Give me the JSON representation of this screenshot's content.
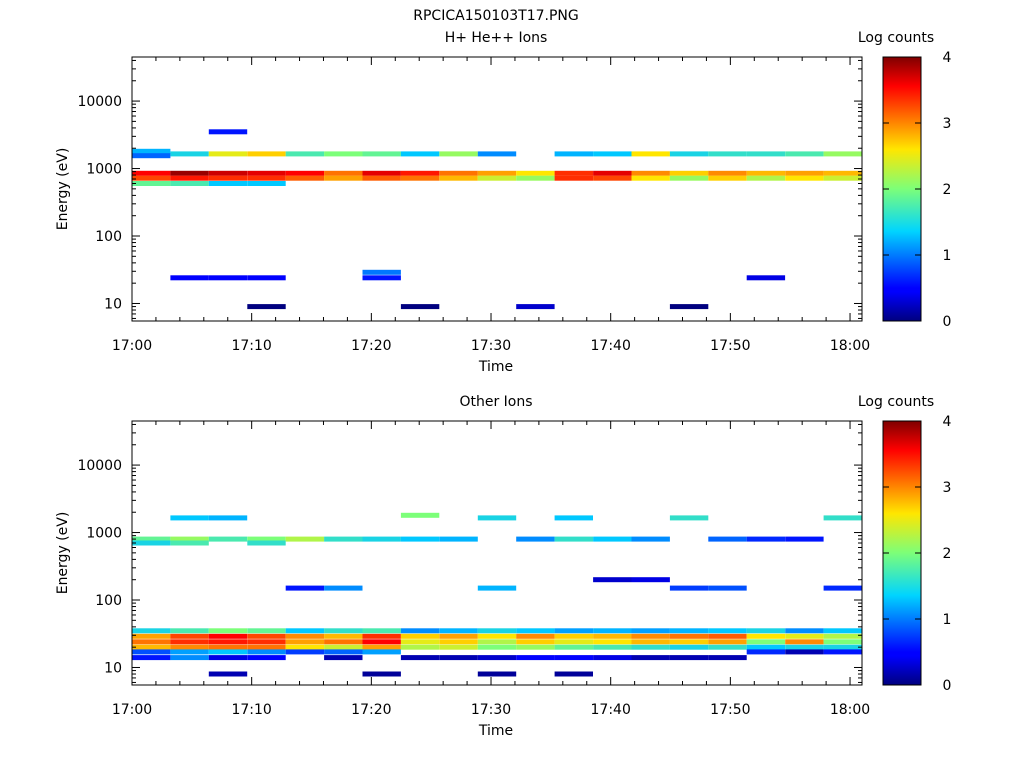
{
  "figure_title": "RPCICA150103T17.PNG",
  "chart_data": [
    {
      "type": "heatmap",
      "title": "H+ He++ Ions",
      "xlabel": "Time",
      "ylabel": "Energy (eV)",
      "x_ticks": [
        "17:00",
        "17:10",
        "17:20",
        "17:30",
        "17:40",
        "17:50",
        "18:00"
      ],
      "x_range": [
        "17:00",
        "18:01"
      ],
      "y_scale": "log",
      "y_ticks": [
        10,
        100,
        1000,
        10000
      ],
      "y_range": [
        5.5,
        45000
      ],
      "colorbar": {
        "label": "Log counts",
        "range": [
          0,
          4
        ],
        "ticks": [
          0,
          1,
          2,
          3,
          4
        ]
      },
      "time_bins": 19,
      "cells": [
        {
          "c": 0,
          "e": 850,
          "v": 3.5
        },
        {
          "c": 0,
          "e": 720,
          "v": 3.2
        },
        {
          "c": 0,
          "e": 600,
          "v": 1.9
        },
        {
          "c": 0,
          "e": 1800,
          "v": 1.4
        },
        {
          "c": 0,
          "e": 1550,
          "v": 1.0
        },
        {
          "c": 1,
          "e": 850,
          "v": 3.9
        },
        {
          "c": 1,
          "e": 720,
          "v": 3.4
        },
        {
          "c": 1,
          "e": 600,
          "v": 1.8
        },
        {
          "c": 1,
          "e": 1650,
          "v": 1.6
        },
        {
          "c": 1,
          "e": 24,
          "v": 0.5
        },
        {
          "c": 2,
          "e": 850,
          "v": 3.7
        },
        {
          "c": 2,
          "e": 720,
          "v": 3.3
        },
        {
          "c": 2,
          "e": 600,
          "v": 1.5
        },
        {
          "c": 2,
          "e": 1650,
          "v": 2.4
        },
        {
          "c": 2,
          "e": 3500,
          "v": 0.6
        },
        {
          "c": 2,
          "e": 24,
          "v": 0.5
        },
        {
          "c": 3,
          "e": 850,
          "v": 3.6
        },
        {
          "c": 3,
          "e": 720,
          "v": 3.3
        },
        {
          "c": 3,
          "e": 600,
          "v": 1.5
        },
        {
          "c": 3,
          "e": 1650,
          "v": 2.6
        },
        {
          "c": 3,
          "e": 9,
          "v": 0.0
        },
        {
          "c": 3,
          "e": 24,
          "v": 0.5
        },
        {
          "c": 4,
          "e": 850,
          "v": 3.5
        },
        {
          "c": 4,
          "e": 720,
          "v": 3.1
        },
        {
          "c": 4,
          "e": 1650,
          "v": 1.8
        },
        {
          "c": 5,
          "e": 850,
          "v": 3.0
        },
        {
          "c": 5,
          "e": 720,
          "v": 2.8
        },
        {
          "c": 5,
          "e": 1650,
          "v": 2.0
        },
        {
          "c": 6,
          "e": 850,
          "v": 3.6
        },
        {
          "c": 6,
          "e": 720,
          "v": 3.1
        },
        {
          "c": 6,
          "e": 1650,
          "v": 1.9
        },
        {
          "c": 6,
          "e": 29,
          "v": 1.1
        },
        {
          "c": 6,
          "e": 24,
          "v": 0.6
        },
        {
          "c": 7,
          "e": 850,
          "v": 3.4
        },
        {
          "c": 7,
          "e": 720,
          "v": 3.0
        },
        {
          "c": 7,
          "e": 1650,
          "v": 1.5
        },
        {
          "c": 7,
          "e": 9,
          "v": 0.0
        },
        {
          "c": 8,
          "e": 850,
          "v": 3.0
        },
        {
          "c": 8,
          "e": 720,
          "v": 2.7
        },
        {
          "c": 8,
          "e": 1650,
          "v": 2.1
        },
        {
          "c": 9,
          "e": 850,
          "v": 2.8
        },
        {
          "c": 9,
          "e": 720,
          "v": 2.3
        },
        {
          "c": 9,
          "e": 1650,
          "v": 1.2
        },
        {
          "c": 10,
          "e": 850,
          "v": 2.5
        },
        {
          "c": 10,
          "e": 720,
          "v": 2.1
        },
        {
          "c": 10,
          "e": 9,
          "v": 0.3
        },
        {
          "c": 11,
          "e": 850,
          "v": 3.3
        },
        {
          "c": 11,
          "e": 720,
          "v": 3.3
        },
        {
          "c": 11,
          "e": 1650,
          "v": 1.4
        },
        {
          "c": 12,
          "e": 850,
          "v": 3.6
        },
        {
          "c": 12,
          "e": 720,
          "v": 3.2
        },
        {
          "c": 12,
          "e": 1650,
          "v": 1.5
        },
        {
          "c": 13,
          "e": 850,
          "v": 2.9
        },
        {
          "c": 13,
          "e": 720,
          "v": 2.5
        },
        {
          "c": 13,
          "e": 1650,
          "v": 2.5
        },
        {
          "c": 14,
          "e": 850,
          "v": 2.6
        },
        {
          "c": 14,
          "e": 720,
          "v": 2.1
        },
        {
          "c": 14,
          "e": 1650,
          "v": 1.6
        },
        {
          "c": 14,
          "e": 9,
          "v": 0.0
        },
        {
          "c": 15,
          "e": 850,
          "v": 2.9
        },
        {
          "c": 15,
          "e": 720,
          "v": 2.6
        },
        {
          "c": 15,
          "e": 1650,
          "v": 1.7
        },
        {
          "c": 16,
          "e": 850,
          "v": 2.7
        },
        {
          "c": 16,
          "e": 720,
          "v": 2.2
        },
        {
          "c": 16,
          "e": 1650,
          "v": 1.7
        },
        {
          "c": 16,
          "e": 24,
          "v": 0.4
        },
        {
          "c": 17,
          "e": 850,
          "v": 2.8
        },
        {
          "c": 17,
          "e": 720,
          "v": 2.5
        },
        {
          "c": 17,
          "e": 1650,
          "v": 1.8
        },
        {
          "c": 18,
          "e": 850,
          "v": 2.7
        },
        {
          "c": 18,
          "e": 720,
          "v": 2.3
        },
        {
          "c": 18,
          "e": 1650,
          "v": 2.1
        }
      ]
    },
    {
      "type": "heatmap",
      "title": "Other Ions",
      "xlabel": "Time",
      "ylabel": "Energy (eV)",
      "x_ticks": [
        "17:00",
        "17:10",
        "17:20",
        "17:30",
        "17:40",
        "17:50",
        "18:00"
      ],
      "x_range": [
        "17:00",
        "18:01"
      ],
      "y_scale": "log",
      "y_ticks": [
        10,
        100,
        1000,
        10000
      ],
      "y_range": [
        5.5,
        45000
      ],
      "colorbar": {
        "label": "Log counts",
        "range": [
          0,
          4
        ],
        "ticks": [
          0,
          1,
          2,
          3,
          4
        ]
      },
      "time_bins": 19,
      "cells": [
        {
          "c": 0,
          "e": 35,
          "v": 1.6
        },
        {
          "c": 0,
          "e": 29,
          "v": 2.8
        },
        {
          "c": 0,
          "e": 24,
          "v": 3.0
        },
        {
          "c": 0,
          "e": 20,
          "v": 2.7
        },
        {
          "c": 0,
          "e": 17,
          "v": 0.9
        },
        {
          "c": 0,
          "e": 14,
          "v": 0.6
        },
        {
          "c": 0,
          "e": 800,
          "v": 1.9
        },
        {
          "c": 0,
          "e": 700,
          "v": 1.6
        },
        {
          "c": 1,
          "e": 35,
          "v": 1.8
        },
        {
          "c": 1,
          "e": 29,
          "v": 3.2
        },
        {
          "c": 1,
          "e": 24,
          "v": 3.3
        },
        {
          "c": 1,
          "e": 20,
          "v": 2.9
        },
        {
          "c": 1,
          "e": 17,
          "v": 1.3
        },
        {
          "c": 1,
          "e": 14,
          "v": 1.2
        },
        {
          "c": 1,
          "e": 800,
          "v": 2.1
        },
        {
          "c": 1,
          "e": 700,
          "v": 1.8
        },
        {
          "c": 1,
          "e": 1650,
          "v": 1.5
        },
        {
          "c": 2,
          "e": 35,
          "v": 2.0
        },
        {
          "c": 2,
          "e": 29,
          "v": 3.5
        },
        {
          "c": 2,
          "e": 24,
          "v": 3.4
        },
        {
          "c": 2,
          "e": 20,
          "v": 3.0
        },
        {
          "c": 2,
          "e": 17,
          "v": 1.5
        },
        {
          "c": 2,
          "e": 14,
          "v": 0.4
        },
        {
          "c": 2,
          "e": 8,
          "v": 0.2
        },
        {
          "c": 2,
          "e": 800,
          "v": 1.8
        },
        {
          "c": 2,
          "e": 1650,
          "v": 1.4
        },
        {
          "c": 3,
          "e": 35,
          "v": 1.9
        },
        {
          "c": 3,
          "e": 29,
          "v": 3.2
        },
        {
          "c": 3,
          "e": 24,
          "v": 3.3
        },
        {
          "c": 3,
          "e": 20,
          "v": 3.0
        },
        {
          "c": 3,
          "e": 17,
          "v": 1.2
        },
        {
          "c": 3,
          "e": 14,
          "v": 0.5
        },
        {
          "c": 3,
          "e": 800,
          "v": 2.0
        },
        {
          "c": 3,
          "e": 700,
          "v": 1.7
        },
        {
          "c": 4,
          "e": 35,
          "v": 1.5
        },
        {
          "c": 4,
          "e": 29,
          "v": 2.9
        },
        {
          "c": 4,
          "e": 24,
          "v": 2.8
        },
        {
          "c": 4,
          "e": 20,
          "v": 2.5
        },
        {
          "c": 4,
          "e": 17,
          "v": 0.8
        },
        {
          "c": 4,
          "e": 800,
          "v": 2.2
        },
        {
          "c": 4,
          "e": 150,
          "v": 0.6
        },
        {
          "c": 5,
          "e": 35,
          "v": 1.7
        },
        {
          "c": 5,
          "e": 29,
          "v": 2.7
        },
        {
          "c": 5,
          "e": 24,
          "v": 3.0
        },
        {
          "c": 5,
          "e": 20,
          "v": 2.3
        },
        {
          "c": 5,
          "e": 17,
          "v": 1.0
        },
        {
          "c": 5,
          "e": 14,
          "v": 0.2
        },
        {
          "c": 5,
          "e": 800,
          "v": 1.7
        },
        {
          "c": 5,
          "e": 150,
          "v": 1.2
        },
        {
          "c": 6,
          "e": 35,
          "v": 1.8
        },
        {
          "c": 6,
          "e": 29,
          "v": 3.3
        },
        {
          "c": 6,
          "e": 24,
          "v": 3.5
        },
        {
          "c": 6,
          "e": 20,
          "v": 2.8
        },
        {
          "c": 6,
          "e": 17,
          "v": 1.3
        },
        {
          "c": 6,
          "e": 8,
          "v": 0.1
        },
        {
          "c": 6,
          "e": 800,
          "v": 1.6
        },
        {
          "c": 7,
          "e": 35,
          "v": 1.2
        },
        {
          "c": 7,
          "e": 29,
          "v": 2.6
        },
        {
          "c": 7,
          "e": 24,
          "v": 2.4
        },
        {
          "c": 7,
          "e": 20,
          "v": 2.2
        },
        {
          "c": 7,
          "e": 14,
          "v": 0.2
        },
        {
          "c": 7,
          "e": 1800,
          "v": 2.0
        },
        {
          "c": 7,
          "e": 800,
          "v": 1.5
        },
        {
          "c": 8,
          "e": 35,
          "v": 1.4
        },
        {
          "c": 8,
          "e": 29,
          "v": 2.8
        },
        {
          "c": 8,
          "e": 24,
          "v": 2.6
        },
        {
          "c": 8,
          "e": 20,
          "v": 2.3
        },
        {
          "c": 8,
          "e": 14,
          "v": 0.2
        },
        {
          "c": 8,
          "e": 800,
          "v": 1.4
        },
        {
          "c": 9,
          "e": 35,
          "v": 1.6
        },
        {
          "c": 9,
          "e": 29,
          "v": 2.5
        },
        {
          "c": 9,
          "e": 24,
          "v": 2.2
        },
        {
          "c": 9,
          "e": 20,
          "v": 2.0
        },
        {
          "c": 9,
          "e": 14,
          "v": 0.3
        },
        {
          "c": 9,
          "e": 8,
          "v": 0.1
        },
        {
          "c": 9,
          "e": 150,
          "v": 1.4
        },
        {
          "c": 9,
          "e": 1650,
          "v": 1.6
        },
        {
          "c": 10,
          "e": 35,
          "v": 1.5
        },
        {
          "c": 10,
          "e": 29,
          "v": 2.9
        },
        {
          "c": 10,
          "e": 24,
          "v": 2.6
        },
        {
          "c": 10,
          "e": 20,
          "v": 2.1
        },
        {
          "c": 10,
          "e": 14,
          "v": 0.5
        },
        {
          "c": 10,
          "e": 800,
          "v": 1.2
        },
        {
          "c": 11,
          "e": 35,
          "v": 1.3
        },
        {
          "c": 11,
          "e": 29,
          "v": 2.6
        },
        {
          "c": 11,
          "e": 24,
          "v": 2.4
        },
        {
          "c": 11,
          "e": 20,
          "v": 1.9
        },
        {
          "c": 11,
          "e": 14,
          "v": 0.5
        },
        {
          "c": 11,
          "e": 8,
          "v": 0.1
        },
        {
          "c": 11,
          "e": 1650,
          "v": 1.5
        },
        {
          "c": 11,
          "e": 800,
          "v": 1.7
        },
        {
          "c": 12,
          "e": 35,
          "v": 1.4
        },
        {
          "c": 12,
          "e": 29,
          "v": 2.7
        },
        {
          "c": 12,
          "e": 24,
          "v": 2.5
        },
        {
          "c": 12,
          "e": 20,
          "v": 1.8
        },
        {
          "c": 12,
          "e": 14,
          "v": 0.4
        },
        {
          "c": 12,
          "e": 800,
          "v": 1.5
        },
        {
          "c": 12,
          "e": 200,
          "v": 0.3
        },
        {
          "c": 13,
          "e": 35,
          "v": 1.3
        },
        {
          "c": 13,
          "e": 29,
          "v": 2.9
        },
        {
          "c": 13,
          "e": 24,
          "v": 2.7
        },
        {
          "c": 13,
          "e": 20,
          "v": 1.7
        },
        {
          "c": 13,
          "e": 14,
          "v": 0.2
        },
        {
          "c": 13,
          "e": 800,
          "v": 1.2
        },
        {
          "c": 13,
          "e": 200,
          "v": 0.4
        },
        {
          "c": 14,
          "e": 35,
          "v": 1.4
        },
        {
          "c": 14,
          "e": 29,
          "v": 3.0
        },
        {
          "c": 14,
          "e": 24,
          "v": 2.6
        },
        {
          "c": 14,
          "e": 20,
          "v": 1.6
        },
        {
          "c": 14,
          "e": 14,
          "v": 0.2
        },
        {
          "c": 14,
          "e": 1650,
          "v": 1.7
        },
        {
          "c": 14,
          "e": 150,
          "v": 0.8
        },
        {
          "c": 15,
          "e": 35,
          "v": 1.5
        },
        {
          "c": 15,
          "e": 29,
          "v": 3.1
        },
        {
          "c": 15,
          "e": 24,
          "v": 2.8
        },
        {
          "c": 15,
          "e": 20,
          "v": 1.7
        },
        {
          "c": 15,
          "e": 14,
          "v": 0.2
        },
        {
          "c": 15,
          "e": 150,
          "v": 0.9
        },
        {
          "c": 15,
          "e": 800,
          "v": 1.0
        },
        {
          "c": 16,
          "e": 35,
          "v": 1.6
        },
        {
          "c": 16,
          "e": 29,
          "v": 2.5
        },
        {
          "c": 16,
          "e": 24,
          "v": 2.0
        },
        {
          "c": 16,
          "e": 20,
          "v": 1.5
        },
        {
          "c": 16,
          "e": 17,
          "v": 0.7
        },
        {
          "c": 16,
          "e": 800,
          "v": 0.7
        },
        {
          "c": 17,
          "e": 35,
          "v": 1.2
        },
        {
          "c": 17,
          "e": 29,
          "v": 2.4
        },
        {
          "c": 17,
          "e": 24,
          "v": 2.9
        },
        {
          "c": 17,
          "e": 20,
          "v": 1.6
        },
        {
          "c": 17,
          "e": 17,
          "v": 0.2
        },
        {
          "c": 17,
          "e": 800,
          "v": 0.6
        },
        {
          "c": 18,
          "e": 35,
          "v": 1.5
        },
        {
          "c": 18,
          "e": 29,
          "v": 2.2
        },
        {
          "c": 18,
          "e": 24,
          "v": 2.0
        },
        {
          "c": 18,
          "e": 20,
          "v": 1.6
        },
        {
          "c": 18,
          "e": 17,
          "v": 0.6
        },
        {
          "c": 18,
          "e": 1650,
          "v": 1.7
        },
        {
          "c": 18,
          "e": 150,
          "v": 0.7
        }
      ]
    }
  ]
}
